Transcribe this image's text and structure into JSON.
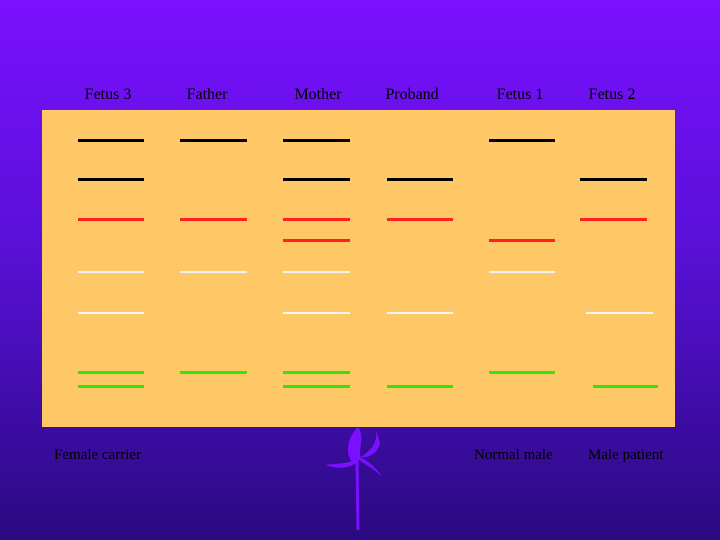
{
  "lanes": [
    {
      "label": "Fetus 3"
    },
    {
      "label": "Father"
    },
    {
      "label": "Mother"
    },
    {
      "label": "Proband"
    },
    {
      "label": "Fetus 1"
    },
    {
      "label": "Fetus 2"
    }
  ],
  "footer": {
    "female_carrier": "Female carrier",
    "normal_male": "Normal male",
    "male_patient": "Male patient"
  },
  "colors": {
    "background_top": "#7a10ff",
    "background_bottom": "#2a0a80",
    "panel": "#fdc865",
    "band_black": "#000000",
    "band_red": "#ff2020",
    "band_white": "#f4f4f4",
    "band_green": "#2ee80a",
    "logo": "#7a10ff"
  },
  "logo": {
    "icon": "ribbon-flower-logo-icon"
  }
}
